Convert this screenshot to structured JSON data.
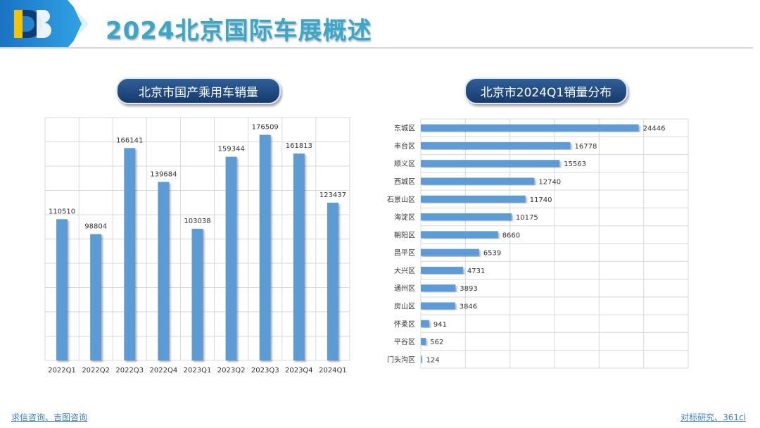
{
  "header": {
    "title": "2024北京国际车展概述"
  },
  "left_chart": {
    "title": "北京市国产乘用车销量"
  },
  "right_chart": {
    "title": "北京市2024Q1销量分布"
  },
  "footer": {
    "left": "求信咨询、吉图咨询",
    "right": "对标研究、361ci"
  },
  "colors": {
    "bar": "#5b9bd5",
    "accent": "#3aa7c8",
    "pill": "#1f4a80",
    "grid": "#d9d9d9"
  },
  "chart_data": [
    {
      "type": "bar",
      "title": "北京市国产乘用车销量",
      "categories": [
        "2022Q1",
        "2022Q2",
        "2022Q3",
        "2022Q4",
        "2023Q1",
        "2023Q2",
        "2023Q3",
        "2023Q4",
        "2024Q1"
      ],
      "values": [
        110510,
        98804,
        166141,
        139684,
        103038,
        159344,
        176509,
        161813,
        123437
      ],
      "ylim": [
        0,
        190000
      ],
      "grid": true
    },
    {
      "type": "bar",
      "orientation": "horizontal",
      "title": "北京市2024Q1销量分布",
      "categories": [
        "东城区",
        "丰台区",
        "顺义区",
        "西城区",
        "石景山区",
        "海淀区",
        "朝阳区",
        "昌平区",
        "大兴区",
        "通州区",
        "房山区",
        "怀柔区",
        "平谷区",
        "门头沟区"
      ],
      "values": [
        24446,
        16778,
        15563,
        12740,
        11740,
        10175,
        8660,
        6539,
        4731,
        3893,
        3846,
        941,
        562,
        124
      ],
      "xlim": [
        0,
        30000
      ],
      "grid": true
    }
  ]
}
